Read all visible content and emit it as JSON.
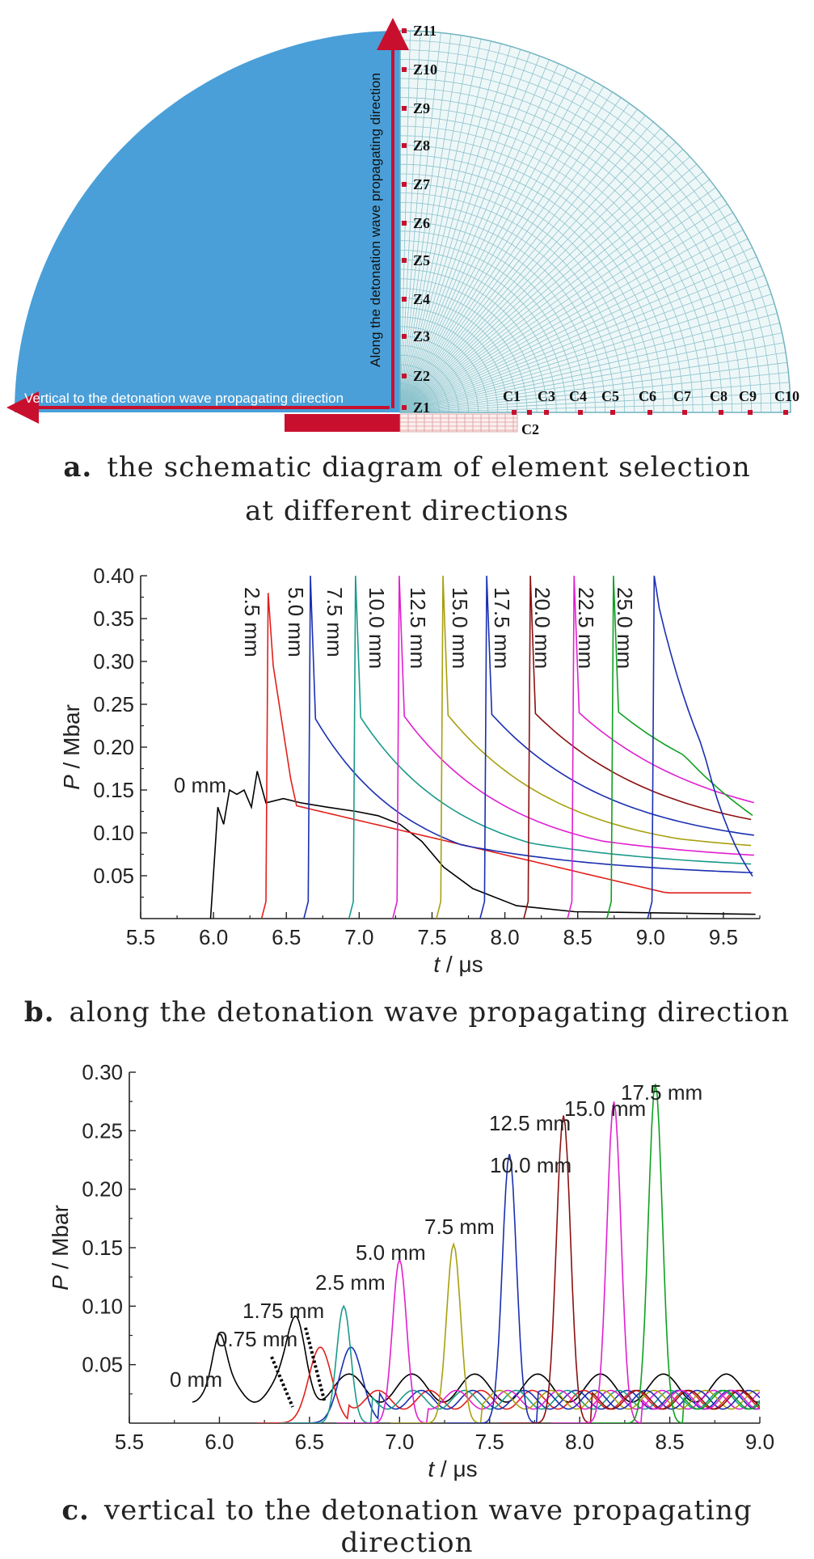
{
  "panel_a": {
    "caption_letter": "a.",
    "caption_line1": "the schematic diagram of element selection",
    "caption_line2": "at different directions",
    "arrow_vertical_label": "Along the detonation wave propagating direction",
    "arrow_horizontal_label": "Vertical to the detonation wave propagating direction",
    "z_labels": [
      "Z1",
      "Z2",
      "Z3",
      "Z4",
      "Z5",
      "Z6",
      "Z7",
      "Z8",
      "Z9",
      "Z10",
      "Z11"
    ],
    "c_labels": [
      "C1",
      "C2",
      "C3",
      "C4",
      "C5",
      "C6",
      "C7",
      "C8",
      "C9",
      "C10"
    ],
    "colors": {
      "fill": "#4a9fd8",
      "mesh": "#6fb3bf",
      "red": "#c8102e",
      "wall": "#c8102e"
    }
  },
  "panel_b": {
    "caption_letter": "b.",
    "caption": "along the detonation wave propagating direction"
  },
  "panel_c": {
    "caption_letter": "c.",
    "caption": "vertical to the detonation wave propagating direction"
  },
  "chart_data": [
    {
      "type": "line",
      "xlabel_italic": "t",
      "xlabel_unit": " / μs",
      "ylabel_italic": "P",
      "ylabel_unit": " / Mbar",
      "xlim": [
        5.5,
        9.75
      ],
      "ylim": [
        0.0,
        0.4
      ],
      "xticks": [
        "5.5",
        "6.0",
        "6.5",
        "7.0",
        "7.5",
        "8.0",
        "8.5",
        "9.0",
        "9.5"
      ],
      "yticks": [
        "0.05",
        "0.10",
        "0.15",
        "0.20",
        "0.25",
        "0.30",
        "0.35",
        "0.40"
      ],
      "series": [
        {
          "name": "0 mm",
          "color": "#000000",
          "arrival": 5.98,
          "peak": 0.17
        },
        {
          "name": "2.5 mm",
          "color": "#e0201c",
          "arrival": 6.36,
          "peak": 0.38
        },
        {
          "name": "5.0 mm",
          "color": "#1a2fb0",
          "arrival": 6.65,
          "peak": 0.4
        },
        {
          "name": "7.5 mm",
          "color": "#1a9a8a",
          "arrival": 6.96,
          "peak": 0.4
        },
        {
          "name": "10.0 mm",
          "color": "#e020d0",
          "arrival": 7.26,
          "peak": 0.4
        },
        {
          "name": "12.5 mm",
          "color": "#a8a010",
          "arrival": 7.56,
          "peak": 0.4
        },
        {
          "name": "15.0 mm",
          "color": "#1a2fb0",
          "arrival": 7.86,
          "peak": 0.4
        },
        {
          "name": "17.5 mm",
          "color": "#8a1010",
          "arrival": 8.16,
          "peak": 0.4
        },
        {
          "name": "20.0 mm",
          "color": "#e020d0",
          "arrival": 8.46,
          "peak": 0.4
        },
        {
          "name": "22.5 mm",
          "color": "#10a020",
          "arrival": 8.73,
          "peak": 0.4
        },
        {
          "name": "25.0 mm",
          "color": "#1a2fb0",
          "arrival": 9.01,
          "peak": 0.4
        }
      ]
    },
    {
      "type": "line",
      "xlabel_italic": "t",
      "xlabel_unit": " / μs",
      "ylabel_italic": "P",
      "ylabel_unit": " / Mbar",
      "xlim": [
        5.5,
        9.0
      ],
      "ylim": [
        0.0,
        0.3
      ],
      "xticks": [
        "5.5",
        "6.0",
        "6.5",
        "7.0",
        "7.5",
        "8.0",
        "8.5",
        "9.0"
      ],
      "yticks": [
        "0.05",
        "0.10",
        "0.15",
        "0.20",
        "0.25",
        "0.30"
      ],
      "series": [
        {
          "name": "0 mm",
          "color": "#000000",
          "peak_t": 6.43,
          "peak": 0.055
        },
        {
          "name": "0.75 mm",
          "color": "#e0201c",
          "peak_t": 6.56,
          "peak": 0.065
        },
        {
          "name": "1.75 mm",
          "color": "#1a2fb0",
          "peak_t": 6.73,
          "peak": 0.065
        },
        {
          "name": "2.5 mm",
          "color": "#1a9a8a",
          "peak_t": 6.69,
          "peak": 0.1
        },
        {
          "name": "5.0 mm",
          "color": "#e020d0",
          "peak_t": 7.0,
          "peak": 0.14
        },
        {
          "name": "7.5 mm",
          "color": "#a8a010",
          "peak_t": 7.3,
          "peak": 0.153
        },
        {
          "name": "10.0 mm",
          "color": "#1a2fb0",
          "peak_t": 7.61,
          "peak": 0.23
        },
        {
          "name": "12.5 mm",
          "color": "#8a1010",
          "peak_t": 7.91,
          "peak": 0.263
        },
        {
          "name": "15.0 mm",
          "color": "#e020d0",
          "peak_t": 8.19,
          "peak": 0.275
        },
        {
          "name": "17.5 mm",
          "color": "#10a020",
          "peak_t": 8.42,
          "peak": 0.29
        }
      ]
    }
  ]
}
